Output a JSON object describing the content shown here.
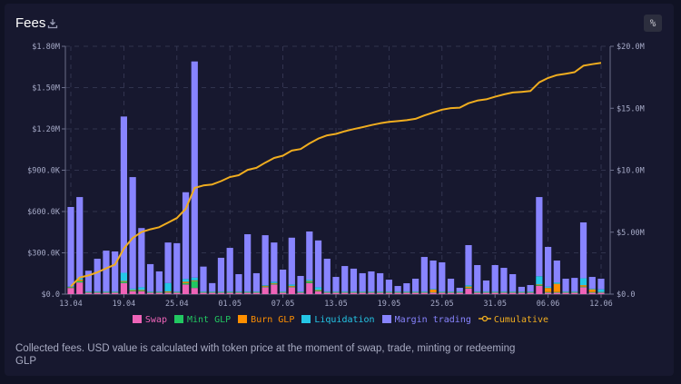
{
  "header": {
    "title": "Fees",
    "download_icon": "download-icon",
    "percent_label": "%"
  },
  "description": "Collected fees. USD value is calculated with token price at the moment of swap, trade, minting or redeeming GLP",
  "chart_data": {
    "type": "bar",
    "stacked": true,
    "title": "Fees",
    "grid": true,
    "legend_placement": "bottom",
    "y_left": {
      "ylim": [
        0,
        1800000
      ],
      "ticks": [
        "$0.0",
        "$300.0K",
        "$600.0K",
        "$900.0K",
        "$1.20M",
        "$1.50M",
        "$1.80M"
      ]
    },
    "y_right": {
      "ylim": [
        0,
        20000000
      ],
      "ticks": [
        "$0.0",
        "$5.00M",
        "$10.0M",
        "$15.0M",
        "$20.0M"
      ]
    },
    "x_ticks": [
      "13.04",
      "19.04",
      "25.04",
      "01.05",
      "07.05",
      "13.05",
      "19.05",
      "25.05",
      "31.05",
      "06.06",
      "12.06"
    ],
    "categories": [
      "13.04",
      "14.04",
      "15.04",
      "16.04",
      "17.04",
      "18.04",
      "19.04",
      "20.04",
      "21.04",
      "22.04",
      "23.04",
      "24.04",
      "25.04",
      "26.04",
      "27.04",
      "28.04",
      "29.04",
      "30.04",
      "01.05",
      "02.05",
      "03.05",
      "04.05",
      "05.05",
      "06.05",
      "07.05",
      "08.05",
      "09.05",
      "10.05",
      "11.05",
      "12.05",
      "13.05",
      "14.05",
      "15.05",
      "16.05",
      "17.05",
      "18.05",
      "19.05",
      "20.05",
      "21.05",
      "22.05",
      "23.05",
      "24.05",
      "25.05",
      "26.05",
      "27.05",
      "28.05",
      "29.05",
      "30.05",
      "31.05",
      "01.06",
      "02.06",
      "03.06",
      "04.06",
      "05.06",
      "06.06",
      "07.06",
      "08.06",
      "09.06",
      "10.06",
      "11.06",
      "12.06"
    ],
    "unit": "millions USD",
    "series": [
      {
        "name": "Swap",
        "color": "#ee64b8",
        "values": [
          0.045,
          0.085,
          0.01,
          0.01,
          0.01,
          0.01,
          0.08,
          0.02,
          0.02,
          0.01,
          0.01,
          0.01,
          0.01,
          0.07,
          0.045,
          0.01,
          0.01,
          0.01,
          0.01,
          0.01,
          0.01,
          0.01,
          0.05,
          0.07,
          0.01,
          0.05,
          0.01,
          0.08,
          0.02,
          0.01,
          0.01,
          0.01,
          0.01,
          0.01,
          0.01,
          0.01,
          0.01,
          0.01,
          0.01,
          0.01,
          0.01,
          0.01,
          0.01,
          0.01,
          0.01,
          0.04,
          0.01,
          0.01,
          0.01,
          0.01,
          0.01,
          0.01,
          0.01,
          0.06,
          0.01,
          0.01,
          0.01,
          0.01,
          0.05,
          0.01,
          0.01
        ]
      },
      {
        "name": "Mint GLP",
        "color": "#22c761",
        "values": [
          0.005,
          0.01,
          0.003,
          0.003,
          0.003,
          0.003,
          0.01,
          0.005,
          0.005,
          0.003,
          0.003,
          0.005,
          0.003,
          0.01,
          0.05,
          0.003,
          0.003,
          0.003,
          0.003,
          0.003,
          0.003,
          0.003,
          0.005,
          0.005,
          0.003,
          0.005,
          0.003,
          0.01,
          0.005,
          0.003,
          0.003,
          0.003,
          0.003,
          0.003,
          0.003,
          0.003,
          0.003,
          0.003,
          0.003,
          0.003,
          0.003,
          0.003,
          0.003,
          0.003,
          0.003,
          0.005,
          0.003,
          0.003,
          0.003,
          0.003,
          0.003,
          0.003,
          0.003,
          0.005,
          0.005,
          0.005,
          0.003,
          0.003,
          0.005,
          0.005,
          0.003
        ]
      },
      {
        "name": "Burn GLP",
        "color": "#ff8f00",
        "values": [
          0.002,
          0.01,
          0.002,
          0.002,
          0.002,
          0.002,
          0.005,
          0.005,
          0.005,
          0.002,
          0.002,
          0.005,
          0.002,
          0.01,
          0.005,
          0.002,
          0.002,
          0.002,
          0.002,
          0.002,
          0.002,
          0.002,
          0.005,
          0.005,
          0.002,
          0.005,
          0.002,
          0.005,
          0.005,
          0.002,
          0.002,
          0.002,
          0.002,
          0.002,
          0.002,
          0.002,
          0.002,
          0.002,
          0.002,
          0.002,
          0.002,
          0.02,
          0.002,
          0.002,
          0.002,
          0.01,
          0.002,
          0.002,
          0.002,
          0.002,
          0.002,
          0.002,
          0.002,
          0.005,
          0.03,
          0.06,
          0.002,
          0.002,
          0.01,
          0.02,
          0.002
        ]
      },
      {
        "name": "Liquidation",
        "color": "#24c6e6",
        "values": [
          0.003,
          0.01,
          0.005,
          0.005,
          0.005,
          0.005,
          0.06,
          0.01,
          0.02,
          0.005,
          0.005,
          0.06,
          0.005,
          0.02,
          0.02,
          0.005,
          0.005,
          0.005,
          0.005,
          0.005,
          0.005,
          0.005,
          0.005,
          0.01,
          0.005,
          0.01,
          0.005,
          0.01,
          0.02,
          0.005,
          0.005,
          0.005,
          0.005,
          0.005,
          0.005,
          0.005,
          0.005,
          0.005,
          0.005,
          0.005,
          0.005,
          0.005,
          0.005,
          0.005,
          0.005,
          0.01,
          0.005,
          0.005,
          0.005,
          0.005,
          0.005,
          0.005,
          0.005,
          0.06,
          0.01,
          0.01,
          0.005,
          0.005,
          0.05,
          0.005,
          0.02
        ]
      },
      {
        "name": "Margin trading",
        "color": "#8884ff",
        "values": [
          0.578,
          0.59,
          0.15,
          0.237,
          0.296,
          0.29,
          1.135,
          0.81,
          0.43,
          0.198,
          0.145,
          0.295,
          0.35,
          0.63,
          1.57,
          0.18,
          0.06,
          0.244,
          0.316,
          0.125,
          0.415,
          0.132,
          0.363,
          0.285,
          0.158,
          0.34,
          0.112,
          0.35,
          0.34,
          0.237,
          0.105,
          0.184,
          0.165,
          0.132,
          0.145,
          0.132,
          0.085,
          0.039,
          0.059,
          0.092,
          0.25,
          0.206,
          0.211,
          0.092,
          0.026,
          0.291,
          0.191,
          0.079,
          0.191,
          0.171,
          0.125,
          0.033,
          0.046,
          0.575,
          0.288,
          0.159,
          0.092,
          0.098,
          0.406,
          0.085,
          0.077
        ]
      }
    ],
    "cumulative": {
      "name": "Cumulative",
      "color": "#f0ad1f",
      "values": [
        0.63,
        1.34,
        1.51,
        1.76,
        2.08,
        2.39,
        3.68,
        4.53,
        5.01,
        5.23,
        5.4,
        5.77,
        6.14,
        6.88,
        8.57,
        8.77,
        8.85,
        9.12,
        9.45,
        9.6,
        10.03,
        10.19,
        10.61,
        10.99,
        11.17,
        11.58,
        11.71,
        12.16,
        12.55,
        12.81,
        12.93,
        13.14,
        13.32,
        13.47,
        13.64,
        13.79,
        13.9,
        13.96,
        14.04,
        14.15,
        14.42,
        14.66,
        14.89,
        15.01,
        15.05,
        15.41,
        15.62,
        15.72,
        15.93,
        16.12,
        16.27,
        16.32,
        16.39,
        17.09,
        17.44,
        17.68,
        17.79,
        17.91,
        18.43,
        18.56,
        18.67
      ]
    }
  }
}
